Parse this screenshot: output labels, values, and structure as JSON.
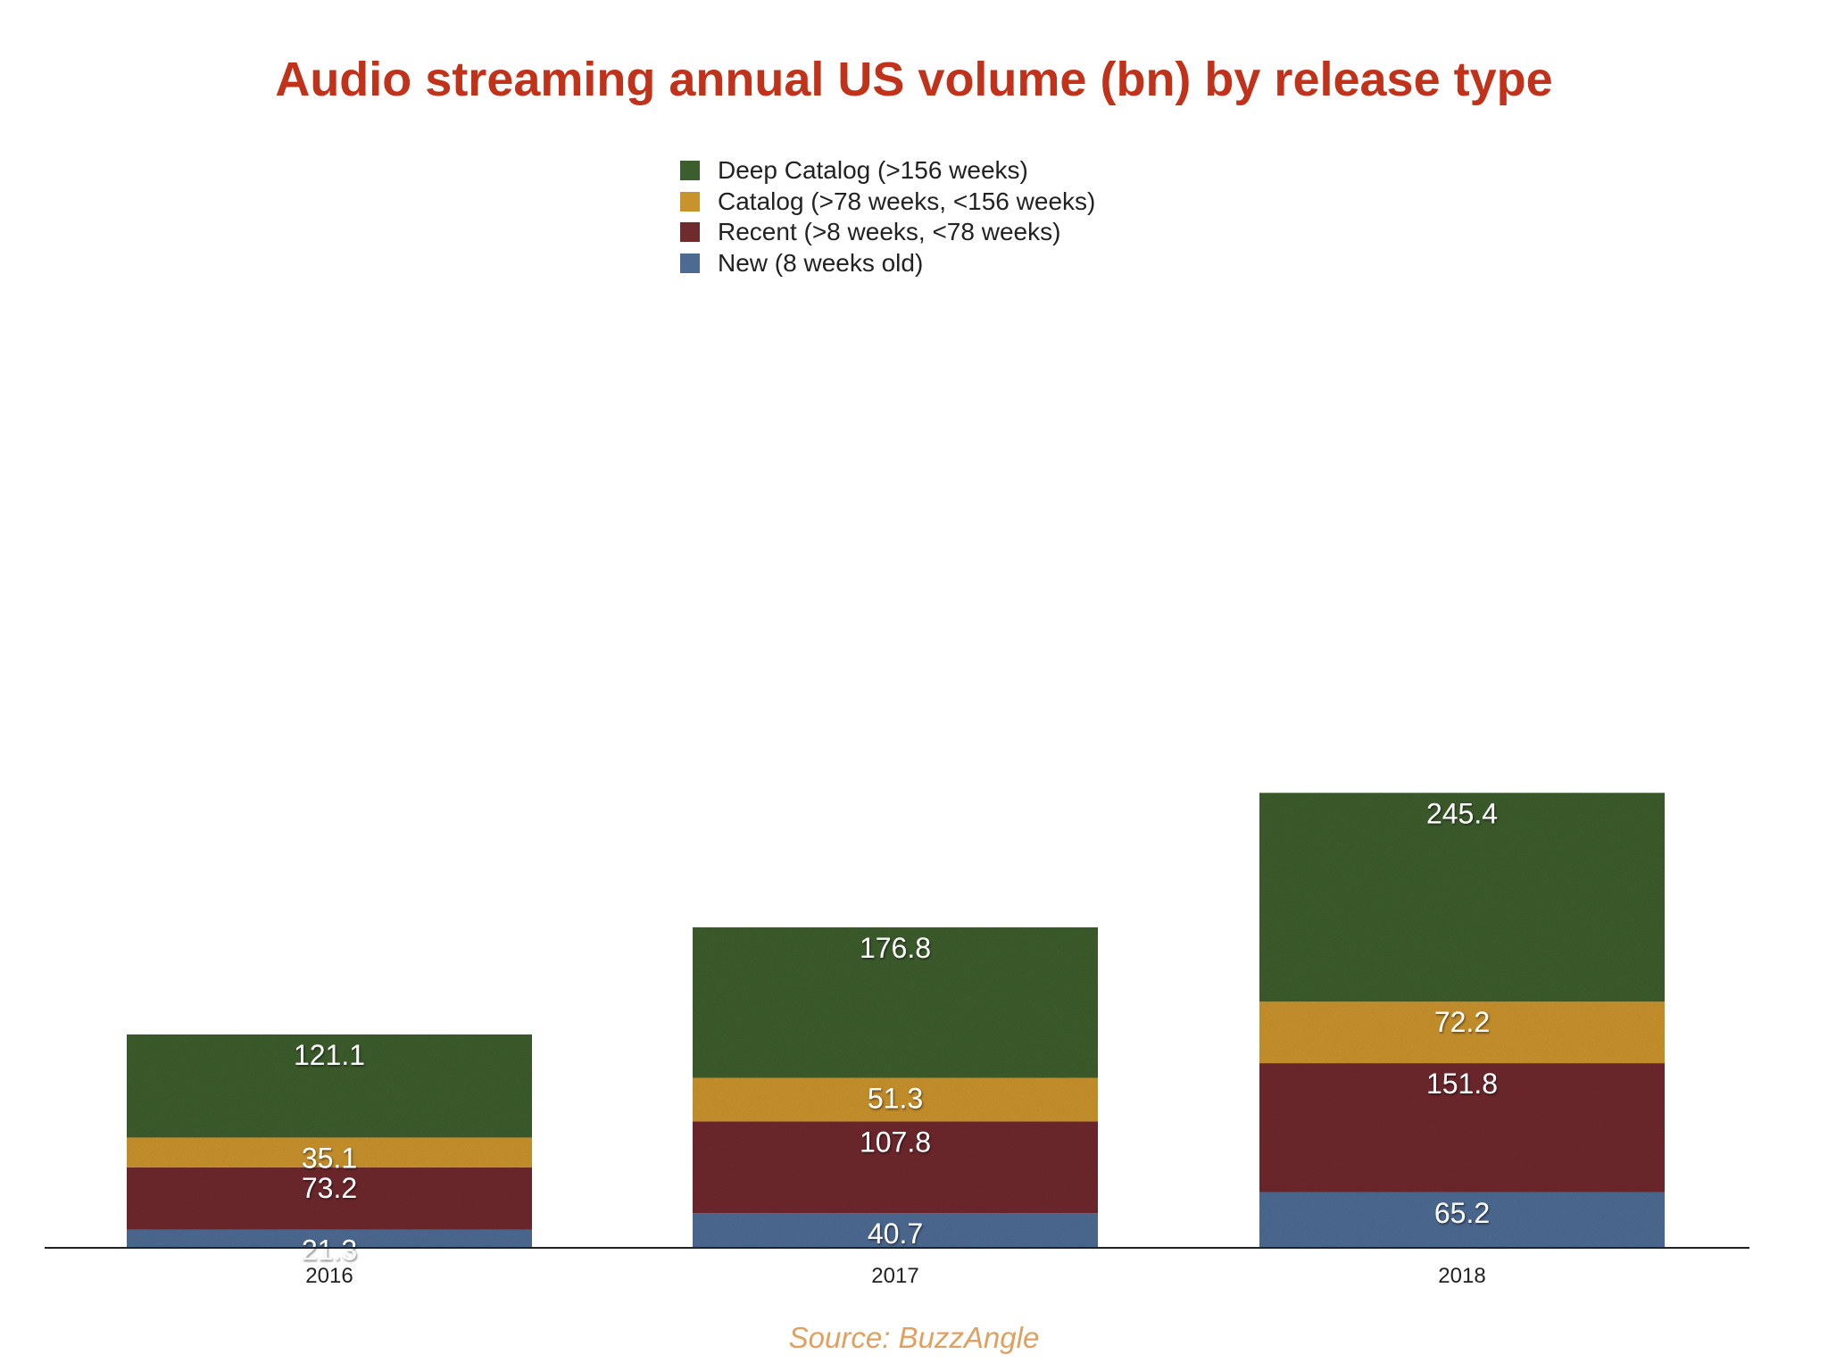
{
  "chart_data": {
    "type": "bar",
    "stacked": true,
    "title": "Audio streaming annual US volume (bn) by release type",
    "categories": [
      "2016",
      "2017",
      "2018"
    ],
    "series": [
      {
        "name": "New (8 weeks old)",
        "color": "#4d6a93",
        "values": [
          21.3,
          40.7,
          65.2
        ]
      },
      {
        "name": "Recent (>8 weeks, <78 weeks)",
        "color": "#6e2c2e",
        "values": [
          73.2,
          107.8,
          151.8
        ]
      },
      {
        "name": "Catalog (>78 weeks, <156 weeks)",
        "color": "#c8922d",
        "values": [
          35.1,
          51.3,
          72.2
        ]
      },
      {
        "name": "Deep Catalog (>156 weeks)",
        "color": "#3c5d2e",
        "values": [
          121.1,
          176.8,
          245.4
        ]
      }
    ],
    "legend_order": [
      3,
      2,
      1,
      0
    ],
    "legend_position": "top-center",
    "xlabel": "",
    "ylabel": "",
    "ylim": [
      0,
      600
    ],
    "grid": false,
    "data_labels": true,
    "label_color": "#ffffff",
    "source": "Source: BuzzAngle"
  }
}
